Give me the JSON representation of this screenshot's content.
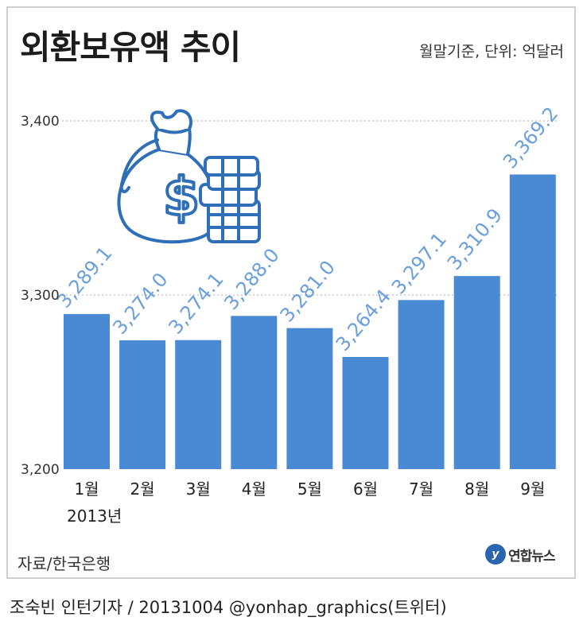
{
  "title": "외환보유액 추이",
  "subtitle": "월말기준, 단위: 억달러",
  "source": "자료/한국은행",
  "logo_text": "연합뉴스",
  "credit": "조숙빈 인턴기자 / 20131004 @yonhap_graphics(트위터)",
  "chart_data": {
    "type": "bar",
    "categories": [
      "1월",
      "2월",
      "3월",
      "4월",
      "5월",
      "6월",
      "7월",
      "8월",
      "9월"
    ],
    "values": [
      3289.1,
      3274.0,
      3274.1,
      3288.0,
      3281.0,
      3264.4,
      3297.1,
      3310.9,
      3369.2
    ],
    "value_labels": [
      "3,289.1",
      "3,274.0",
      "3,274.1",
      "3,288.0",
      "3,281.0",
      "3,264.4",
      "3,297.1",
      "3,310.9",
      "3,369.2"
    ],
    "year_label": "2013년",
    "ylim": [
      3200,
      3400
    ],
    "yticks": [
      3200,
      3300,
      3400
    ],
    "ytick_labels": [
      "3,200",
      "3,300",
      "3,400"
    ],
    "grid": true,
    "colors": {
      "bar": "#4a8ad4",
      "label": "#6aa0dc",
      "grid": "#c8c8c8",
      "illustration": "#2f6fb8"
    }
  }
}
